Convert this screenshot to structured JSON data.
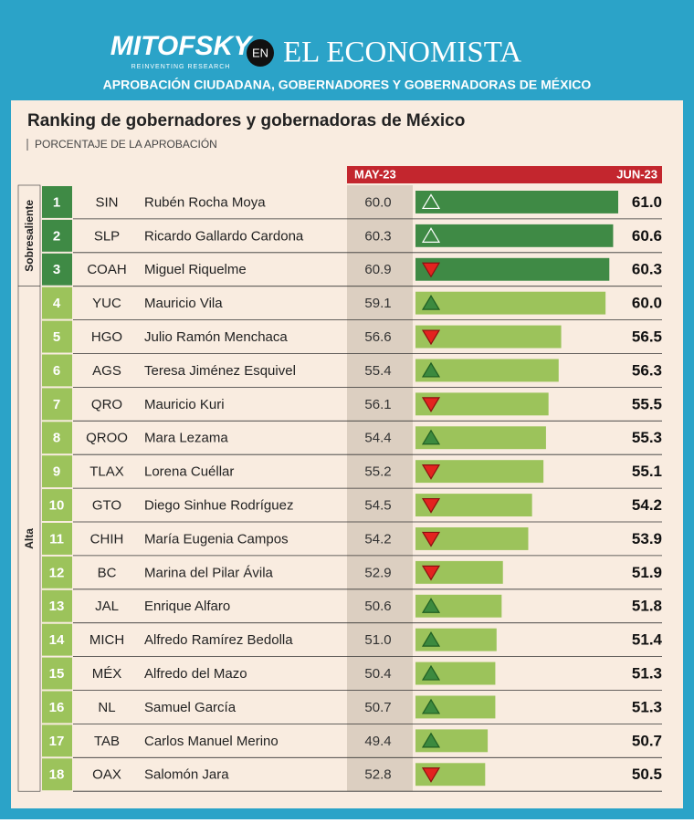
{
  "header": {
    "brand": "MITOFSKY",
    "tagline": "REINVENTING RESEARCH",
    "connector": "EN",
    "publication": "EL ECONOMISTA",
    "subtitle": "APROBACIÓN CIUDADANA, GOBERNADORES Y GOBERNADORAS DE MÉXICO"
  },
  "title": "Ranking de gobernadores y gobernadoras de México",
  "subtitle": "PORCENTAJE DE LA APROBACIÓN",
  "columns": {
    "previous": "MAY-23",
    "current": "JUN-23"
  },
  "xlim": [
    45,
    61
  ],
  "groups": [
    {
      "label": "Sobresaliente",
      "color": "#3f8a45",
      "rows": [
        {
          "rank": 1,
          "state": "SIN",
          "name": "Rubén Rocha Moya",
          "may": 60,
          "may_label": "60.0",
          "jun": 61,
          "jun_label": "61.0"
        },
        {
          "rank": 2,
          "state": "SLP",
          "name": "Ricardo Gallardo Cardona",
          "may": 60.3,
          "may_label": "60.3",
          "jun": 60.6,
          "jun_label": "60.6"
        },
        {
          "rank": 3,
          "state": "COAH",
          "name": "Miguel Riquelme",
          "may": 60.9,
          "may_label": "60.9",
          "jun": 60.3,
          "jun_label": "60.3"
        }
      ]
    },
    {
      "label": "Alta",
      "color": "#9cc35b",
      "rows": [
        {
          "rank": 4,
          "state": "YUC",
          "name": "Mauricio Vila",
          "may": 59.1,
          "may_label": "59.1",
          "jun": 60,
          "jun_label": "60.0"
        },
        {
          "rank": 5,
          "state": "HGO",
          "name": "Julio Ramón Menchaca",
          "may": 56.6,
          "may_label": "56.6",
          "jun": 56.5,
          "jun_label": "56.5"
        },
        {
          "rank": 6,
          "state": "AGS",
          "name": "Teresa Jiménez Esquivel",
          "may": 55.4,
          "may_label": "55.4",
          "jun": 56.3,
          "jun_label": "56.3"
        },
        {
          "rank": 7,
          "state": "QRO",
          "name": "Mauricio Kuri",
          "may": 56.1,
          "may_label": "56.1",
          "jun": 55.5,
          "jun_label": "55.5"
        },
        {
          "rank": 8,
          "state": "QROO",
          "name": "Mara Lezama",
          "may": 54.4,
          "may_label": "54.4",
          "jun": 55.3,
          "jun_label": "55.3"
        },
        {
          "rank": 9,
          "state": "TLAX",
          "name": "Lorena Cuéllar",
          "may": 55.2,
          "may_label": "55.2",
          "jun": 55.1,
          "jun_label": "55.1"
        },
        {
          "rank": 10,
          "state": "GTO",
          "name": "Diego Sinhue Rodríguez",
          "may": 54.5,
          "may_label": "54.5",
          "jun": 54.2,
          "jun_label": "54.2"
        },
        {
          "rank": 11,
          "state": "CHIH",
          "name": "María Eugenia Campos",
          "may": 54.2,
          "may_label": "54.2",
          "jun": 53.9,
          "jun_label": "53.9"
        },
        {
          "rank": 12,
          "state": "BC",
          "name": "Marina del Pilar Ávila",
          "may": 52.9,
          "may_label": "52.9",
          "jun": 51.9,
          "jun_label": "51.9"
        },
        {
          "rank": 13,
          "state": "JAL",
          "name": "Enrique Alfaro",
          "may": 50.6,
          "may_label": "50.6",
          "jun": 51.8,
          "jun_label": "51.8"
        },
        {
          "rank": 14,
          "state": "MICH",
          "name": "Alfredo Ramírez Bedolla",
          "may": 51,
          "may_label": "51.0",
          "jun": 51.4,
          "jun_label": "51.4"
        },
        {
          "rank": 15,
          "state": "MÉX",
          "name": "Alfredo del Mazo",
          "may": 50.4,
          "may_label": "50.4",
          "jun": 51.3,
          "jun_label": "51.3"
        },
        {
          "rank": 16,
          "state": "NL",
          "name": "Samuel García",
          "may": 50.7,
          "may_label": "50.7",
          "jun": 51.3,
          "jun_label": "51.3"
        },
        {
          "rank": 17,
          "state": "TAB",
          "name": "Carlos Manuel Merino",
          "may": 49.4,
          "may_label": "49.4",
          "jun": 50.7,
          "jun_label": "50.7"
        },
        {
          "rank": 18,
          "state": "OAX",
          "name": "Salomón Jara",
          "may": 52.8,
          "may_label": "52.8",
          "jun": 50.5,
          "jun_label": "50.5"
        }
      ]
    }
  ]
}
